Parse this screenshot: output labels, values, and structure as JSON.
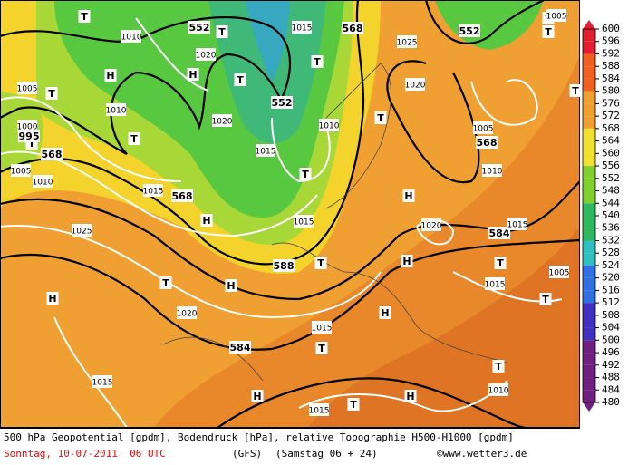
{
  "map": {
    "labels": [
      "T",
      "T",
      "T",
      "T",
      "T",
      "T",
      "T",
      "T",
      "T",
      "T",
      "T",
      "T",
      "T",
      "T",
      "T",
      "T",
      "T",
      "T",
      "T",
      "H",
      "H",
      "H",
      "H",
      "H",
      "H",
      "H",
      "H",
      "H",
      "H",
      "552",
      "552",
      "552",
      "568",
      "568",
      "568",
      "568",
      "584",
      "584",
      "588",
      "1010",
      "1010",
      "1010",
      "1010",
      "1010",
      "1010",
      "1015",
      "1015",
      "1015",
      "1015",
      "1015",
      "1015",
      "1015",
      "1015",
      "1015",
      "1020",
      "1020",
      "1020",
      "1020",
      "1020",
      "1025",
      "1025",
      "1005",
      "1005",
      "1005",
      "1005",
      "1005",
      "1000",
      "995"
    ]
  },
  "legend": {
    "ticks": [
      600,
      596,
      592,
      588,
      584,
      580,
      576,
      572,
      568,
      564,
      560,
      556,
      552,
      548,
      544,
      540,
      536,
      532,
      528,
      524,
      520,
      516,
      512,
      508,
      504,
      500,
      496,
      492,
      488,
      484,
      480
    ]
  },
  "footer": {
    "description": "500 hPa Geopotential [gpdm], Bodendruck [hPa], relative Topographie H500-H1000 [gpdm]",
    "date": "Sonntag, 10-07-2011  06 UTC",
    "model": "(GFS)",
    "run": "(Samstag 06 + 24)",
    "source": "©www.wetter3.de"
  }
}
